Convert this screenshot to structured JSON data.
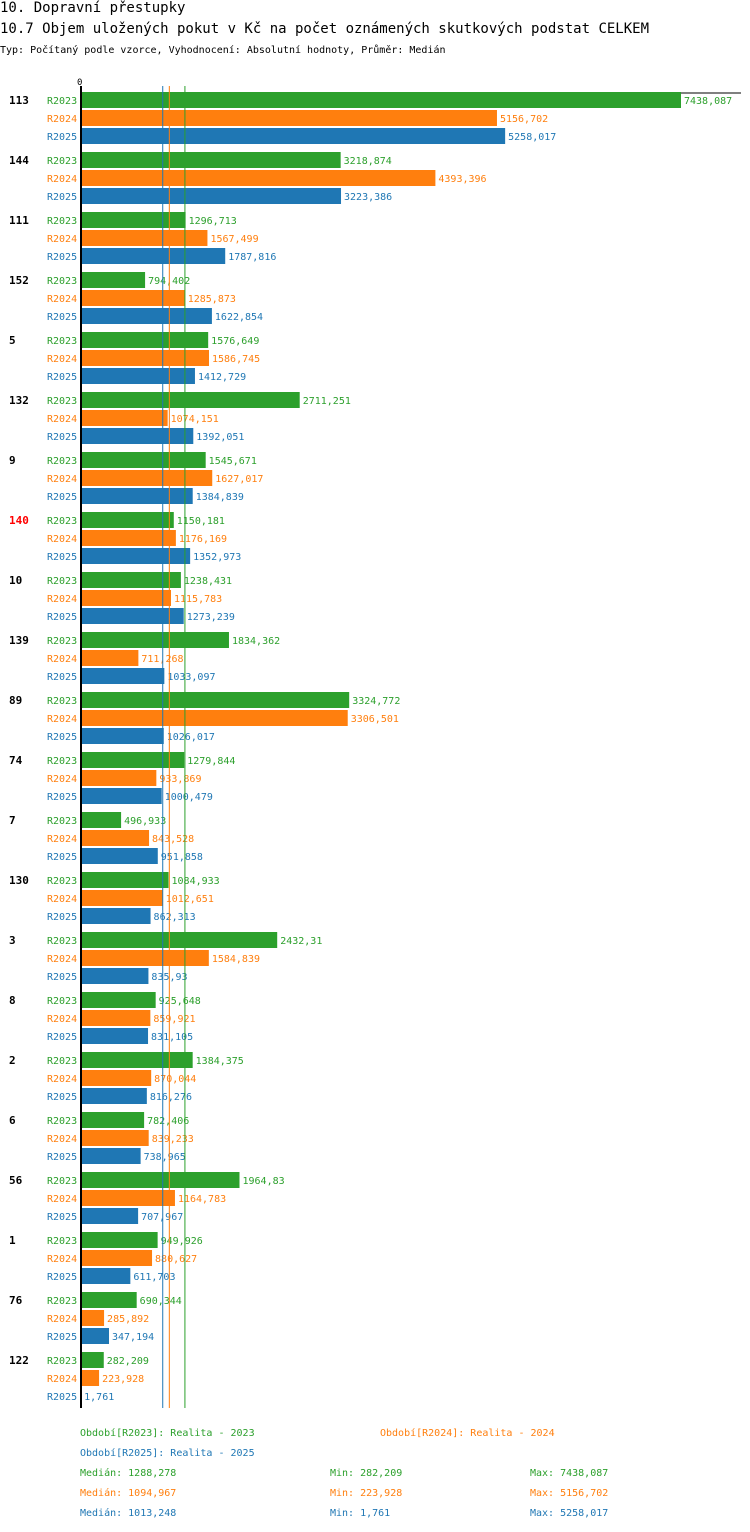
{
  "header": {
    "section": "10. Dopravní přestupky",
    "title": "10.7 Objem uložených pokut v Kč na počet oznámených skutkových podstat CELKEM",
    "subtitle": "Typ: Počítaný podle vzorce, Vyhodnocení: Absolutní hodnoty, Průměr: Medián"
  },
  "colors": {
    "R2023": "#2ca02c",
    "R2024": "#ff7f0e",
    "R2025": "#1f77b4",
    "highlight": "#ff0000",
    "axis": "#000000"
  },
  "chart_data": {
    "type": "bar",
    "orientation": "horizontal",
    "title": "10.7 Objem uložených pokut v Kč na počet oznámených skutkových podstat CELKEM",
    "x_tick_label": "0",
    "xlim": [
      0,
      7438.087
    ],
    "series_names": [
      "R2023",
      "R2024",
      "R2025"
    ],
    "categories": [
      "113",
      "144",
      "111",
      "152",
      "5",
      "132",
      "9",
      "140",
      "10",
      "139",
      "89",
      "74",
      "7",
      "130",
      "3",
      "8",
      "2",
      "6",
      "56",
      "1",
      "76",
      "122"
    ],
    "highlighted_category": "140",
    "series": [
      {
        "name": "R2023",
        "values": [
          7438.087,
          3218.874,
          1296.713,
          794.402,
          1576.649,
          2711.251,
          1545.671,
          1150.181,
          1238.431,
          1834.362,
          3324.772,
          1279.844,
          496.933,
          1084.933,
          2432.31,
          925.648,
          1384.375,
          782.406,
          1964.83,
          949.926,
          690.344,
          282.209
        ],
        "labels": [
          "7438,087",
          "3218,874",
          "1296,713",
          "794,402",
          "1576,649",
          "2711,251",
          "1545,671",
          "1150,181",
          "1238,431",
          "1834,362",
          "3324,772",
          "1279,844",
          "496,933",
          "1084,933",
          "2432,31",
          "925,648",
          "1384,375",
          "782,406",
          "1964,83",
          "949,926",
          "690,344",
          "282,209"
        ]
      },
      {
        "name": "R2024",
        "values": [
          5156.702,
          4393.396,
          1567.499,
          1285.873,
          1586.745,
          1074.151,
          1627.017,
          1176.169,
          1115.783,
          711.268,
          3306.501,
          933.869,
          843.528,
          1012.651,
          1584.839,
          859.921,
          870.044,
          839.233,
          1164.783,
          880.627,
          285.892,
          223.928
        ],
        "labels": [
          "5156,702",
          "4393,396",
          "1567,499",
          "1285,873",
          "1586,745",
          "1074,151",
          "1627,017",
          "1176,169",
          "1115,783",
          "711,268",
          "3306,501",
          "933,869",
          "843,528",
          "1012,651",
          "1584,839",
          "859,921",
          "870,044",
          "839,233",
          "1164,783",
          "880,627",
          "285,892",
          "223,928"
        ]
      },
      {
        "name": "R2025",
        "values": [
          5258.017,
          3223.386,
          1787.816,
          1622.854,
          1412.729,
          1392.051,
          1384.839,
          1352.973,
          1273.239,
          1033.097,
          1026.017,
          1000.479,
          951.858,
          862.313,
          835.93,
          831.105,
          816.276,
          738.965,
          707.967,
          611.703,
          347.194,
          1.761
        ],
        "labels": [
          "5258,017",
          "3223,386",
          "1787,816",
          "1622,854",
          "1412,729",
          "1392,051",
          "1384,839",
          "1352,973",
          "1273,239",
          "1033,097",
          "1026,017",
          "1000,479",
          "951,858",
          "862,313",
          "835,93",
          "831,105",
          "816,276",
          "738,965",
          "707,967",
          "611,703",
          "347,194",
          "1,761"
        ]
      }
    ],
    "medians": [
      {
        "series": "R2023",
        "value": 1288.278
      },
      {
        "series": "R2024",
        "value": 1094.967
      },
      {
        "series": "R2025",
        "value": 1013.248
      }
    ]
  },
  "legend": {
    "period_2023": "Období[R2023]: Realita - 2023",
    "period_2024": "Období[R2024]: Realita - 2024",
    "period_2025": "Období[R2025]: Realita - 2025",
    "stats": [
      {
        "median": "Medián: 1288,278",
        "min": "Min: 282,209",
        "max": "Max: 7438,087"
      },
      {
        "median": "Medián: 1094,967",
        "min": "Min: 223,928",
        "max": "Max: 5156,702"
      },
      {
        "median": "Medián: 1013,248",
        "min": "Min: 1,761",
        "max": "Max: 5258,017"
      }
    ]
  }
}
